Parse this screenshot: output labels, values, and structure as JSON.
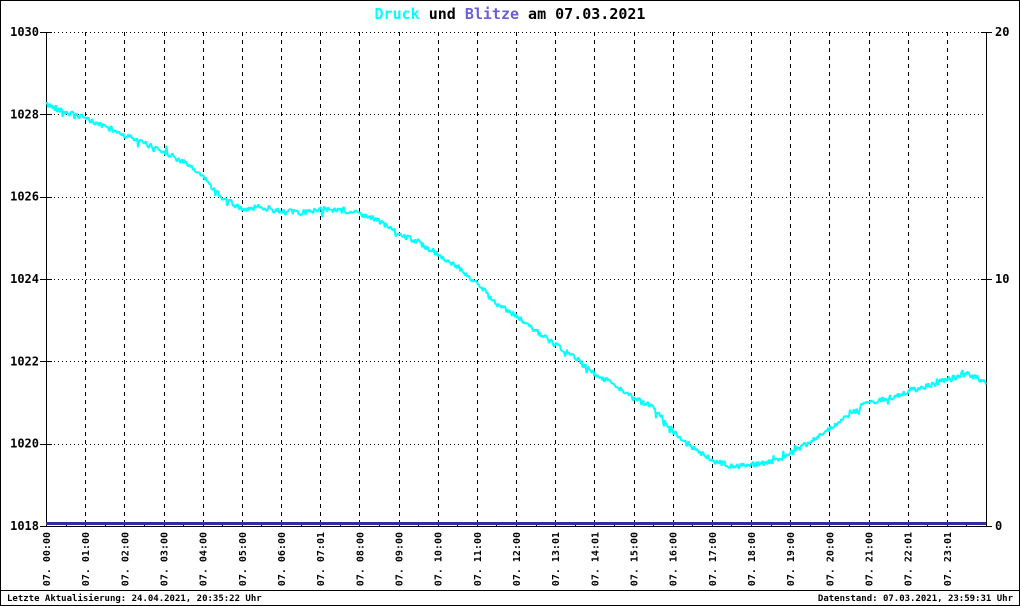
{
  "title": {
    "druck": "Druck",
    "und": " und ",
    "blitze": "Blitze",
    "rest": " am 07.03.2021"
  },
  "footer": {
    "left": "Letzte Aktualisierung: 24.04.2021, 20:35:22 Uhr",
    "right": "Datenstand: 07.03.2021, 23:59:31 Uhr"
  },
  "colors": {
    "druck_series": "#00ffff",
    "blitze_label": "#6a5fd8",
    "blitze_series": "#2f2f9d",
    "grid": "#000000",
    "axis": "#000000",
    "background": "#ffffff"
  },
  "chart_data": {
    "type": "line",
    "title": "Druck und Blitze am 07.03.2021",
    "grid": "on",
    "x_axis": {
      "labels": [
        "07. 00:00",
        "07. 01:00",
        "07. 02:00",
        "07. 03:00",
        "07. 04:00",
        "07. 05:00",
        "07. 06:00",
        "07. 07:01",
        "07. 08:00",
        "07. 09:00",
        "07. 10:00",
        "07. 11:00",
        "07. 12:00",
        "07. 13:01",
        "07. 14:01",
        "07. 15:00",
        "07. 16:00",
        "07. 17:00",
        "07. 18:00",
        "07. 19:00",
        "07. 20:00",
        "07. 21:00",
        "07. 22:01",
        "07. 23:01"
      ],
      "hours_span": 24
    },
    "y_left": {
      "min": 1018,
      "max": 1030,
      "ticks": [
        1018,
        1020,
        1022,
        1024,
        1026,
        1028,
        1030
      ]
    },
    "y_right": {
      "min": 0,
      "max": 20,
      "ticks": [
        0,
        10,
        20
      ]
    },
    "series": [
      {
        "name": "Druck",
        "axis": "left",
        "color": "#00ffff",
        "x_hours": [
          0,
          0.5,
          1,
          1.5,
          2,
          2.5,
          3,
          3.5,
          4,
          4.5,
          5,
          5.5,
          6,
          6.5,
          7,
          7.5,
          8,
          8.5,
          9,
          9.5,
          10,
          10.5,
          11,
          11.5,
          12,
          12.5,
          13,
          13.5,
          14,
          14.5,
          15,
          15.5,
          16,
          16.5,
          17,
          17.5,
          18,
          18.5,
          19,
          19.5,
          20,
          20.5,
          21,
          21.5,
          22,
          22.5,
          23,
          23.5,
          24
        ],
        "values": [
          1028.25,
          1028.05,
          1027.9,
          1027.7,
          1027.5,
          1027.3,
          1027.1,
          1026.85,
          1026.5,
          1025.95,
          1025.7,
          1025.75,
          1025.65,
          1025.6,
          1025.7,
          1025.65,
          1025.6,
          1025.4,
          1025.1,
          1024.9,
          1024.6,
          1024.3,
          1023.9,
          1023.4,
          1023.1,
          1022.75,
          1022.4,
          1022.1,
          1021.7,
          1021.45,
          1021.1,
          1020.9,
          1020.3,
          1019.9,
          1019.6,
          1019.45,
          1019.5,
          1019.55,
          1019.75,
          1020.05,
          1020.35,
          1020.7,
          1021.0,
          1021.1,
          1021.25,
          1021.4,
          1021.55,
          1021.7,
          1021.5
        ]
      },
      {
        "name": "Blitze",
        "axis": "right",
        "color": "#2f2f9d",
        "x_hours": [
          0,
          24
        ],
        "values": [
          0,
          0
        ]
      }
    ]
  }
}
